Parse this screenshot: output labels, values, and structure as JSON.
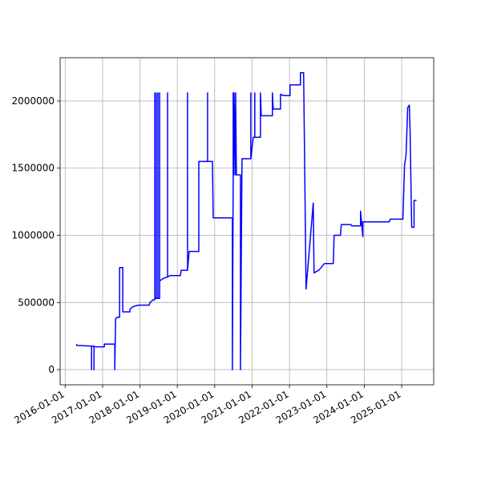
{
  "chart_data": {
    "type": "line",
    "grid": true,
    "xlim": [
      "2015-11-13",
      "2025-11-10"
    ],
    "ylim": [
      -113000,
      2322000
    ],
    "xticks": [
      "2016-01-01",
      "2017-01-01",
      "2018-01-01",
      "2019-01-01",
      "2020-01-01",
      "2021-01-01",
      "2022-01-01",
      "2023-01-01",
      "2024-01-01",
      "2025-01-01"
    ],
    "yticks": [
      0,
      500000,
      1000000,
      1500000,
      2000000
    ],
    "x": [
      "2016-04-19",
      "2016-04-25",
      "2016-09-15",
      "2016-09-15",
      "2016-09-15",
      "2016-10-09",
      "2016-10-09",
      "2016-10-09",
      "2017-01-18",
      "2017-01-18",
      "2017-04-30",
      "2017-04-30",
      "2017-05-08",
      "2017-05-23",
      "2017-06-16",
      "2017-06-16",
      "2017-07-17",
      "2017-07-17",
      "2017-09-25",
      "2017-09-25",
      "2017-10-27",
      "2017-12-20",
      "2018-04-01",
      "2018-04-09",
      "2018-05-10",
      "2018-05-26",
      "2018-05-26",
      "2018-05-26",
      "2018-06-10",
      "2018-06-10",
      "2018-06-10",
      "2018-06-26",
      "2018-06-26",
      "2018-06-26",
      "2018-07-12",
      "2018-07-12",
      "2018-07-12",
      "2018-08-20",
      "2018-09-28",
      "2018-09-28",
      "2018-09-28",
      "2018-10-21",
      "2019-01-31",
      "2019-02-08",
      "2019-04-11",
      "2019-04-11",
      "2019-04-11",
      "2019-04-27",
      "2019-07-30",
      "2019-07-30",
      "2019-10-24",
      "2019-10-24",
      "2019-10-24",
      "2019-12-10",
      "2019-12-18",
      "2020-06-22",
      "2020-06-22",
      "2020-06-30",
      "2020-06-30",
      "2020-07-08",
      "2020-07-08",
      "2020-07-24",
      "2020-07-24",
      "2020-07-31",
      "2020-09-09",
      "2020-09-09",
      "2020-09-24",
      "2020-12-19",
      "2020-12-19",
      "2020-12-19",
      "2021-01-12",
      "2021-01-27",
      "2021-01-27",
      "2021-01-27",
      "2021-03-23",
      "2021-03-23",
      "2021-03-31",
      "2021-07-18",
      "2021-07-18",
      "2021-07-26",
      "2021-10-05",
      "2021-10-05",
      "2021-11-05",
      "2022-01-06",
      "2022-01-06",
      "2022-04-18",
      "2022-04-18",
      "2022-05-19",
      "2022-06-12",
      "2022-08-21",
      "2022-08-29",
      "2022-10-15",
      "2022-12-09",
      "2023-03-05",
      "2023-03-13",
      "2023-05-14",
      "2023-05-22",
      "2023-08-24",
      "2023-09-01",
      "2023-11-26",
      "2023-11-26",
      "2023-12-19",
      "2023-12-19",
      "2024-09-02",
      "2024-09-10",
      "2025-01-13",
      "2025-01-29",
      "2025-02-13",
      "2025-03-01",
      "2025-03-17",
      "2025-03-24",
      "2025-04-09",
      "2025-05-02",
      "2025-05-02",
      "2025-05-26"
    ],
    "series": [
      {
        "color": "#0000ff",
        "values": [
          190000,
          180000,
          175000,
          0,
          175000,
          175000,
          0,
          170000,
          170000,
          190000,
          190000,
          0,
          380000,
          390000,
          390000,
          760000,
          760000,
          430000,
          430000,
          450000,
          470000,
          480000,
          480000,
          500000,
          520000,
          520000,
          2060000,
          530000,
          530000,
          2060000,
          530000,
          530000,
          2060000,
          530000,
          530000,
          2060000,
          660000,
          680000,
          690000,
          2060000,
          690000,
          700000,
          700000,
          740000,
          740000,
          2060000,
          740000,
          880000,
          880000,
          1550000,
          1550000,
          2060000,
          1550000,
          1550000,
          1130000,
          1130000,
          0,
          1450000,
          2060000,
          1450000,
          2060000,
          1450000,
          2060000,
          1450000,
          1450000,
          0,
          1570000,
          1570000,
          2060000,
          1570000,
          1730000,
          1730000,
          2060000,
          1730000,
          1730000,
          2060000,
          1890000,
          1890000,
          2060000,
          1940000,
          1940000,
          2050000,
          2040000,
          2040000,
          2120000,
          2120000,
          2210000,
          2210000,
          600000,
          1240000,
          720000,
          740000,
          790000,
          790000,
          1000000,
          1000000,
          1080000,
          1080000,
          1070000,
          1070000,
          1180000,
          990000,
          1100000,
          1100000,
          1120000,
          1120000,
          1520000,
          1600000,
          1950000,
          1970000,
          1780000,
          1060000,
          1060000,
          1260000,
          1260000
        ]
      }
    ]
  }
}
